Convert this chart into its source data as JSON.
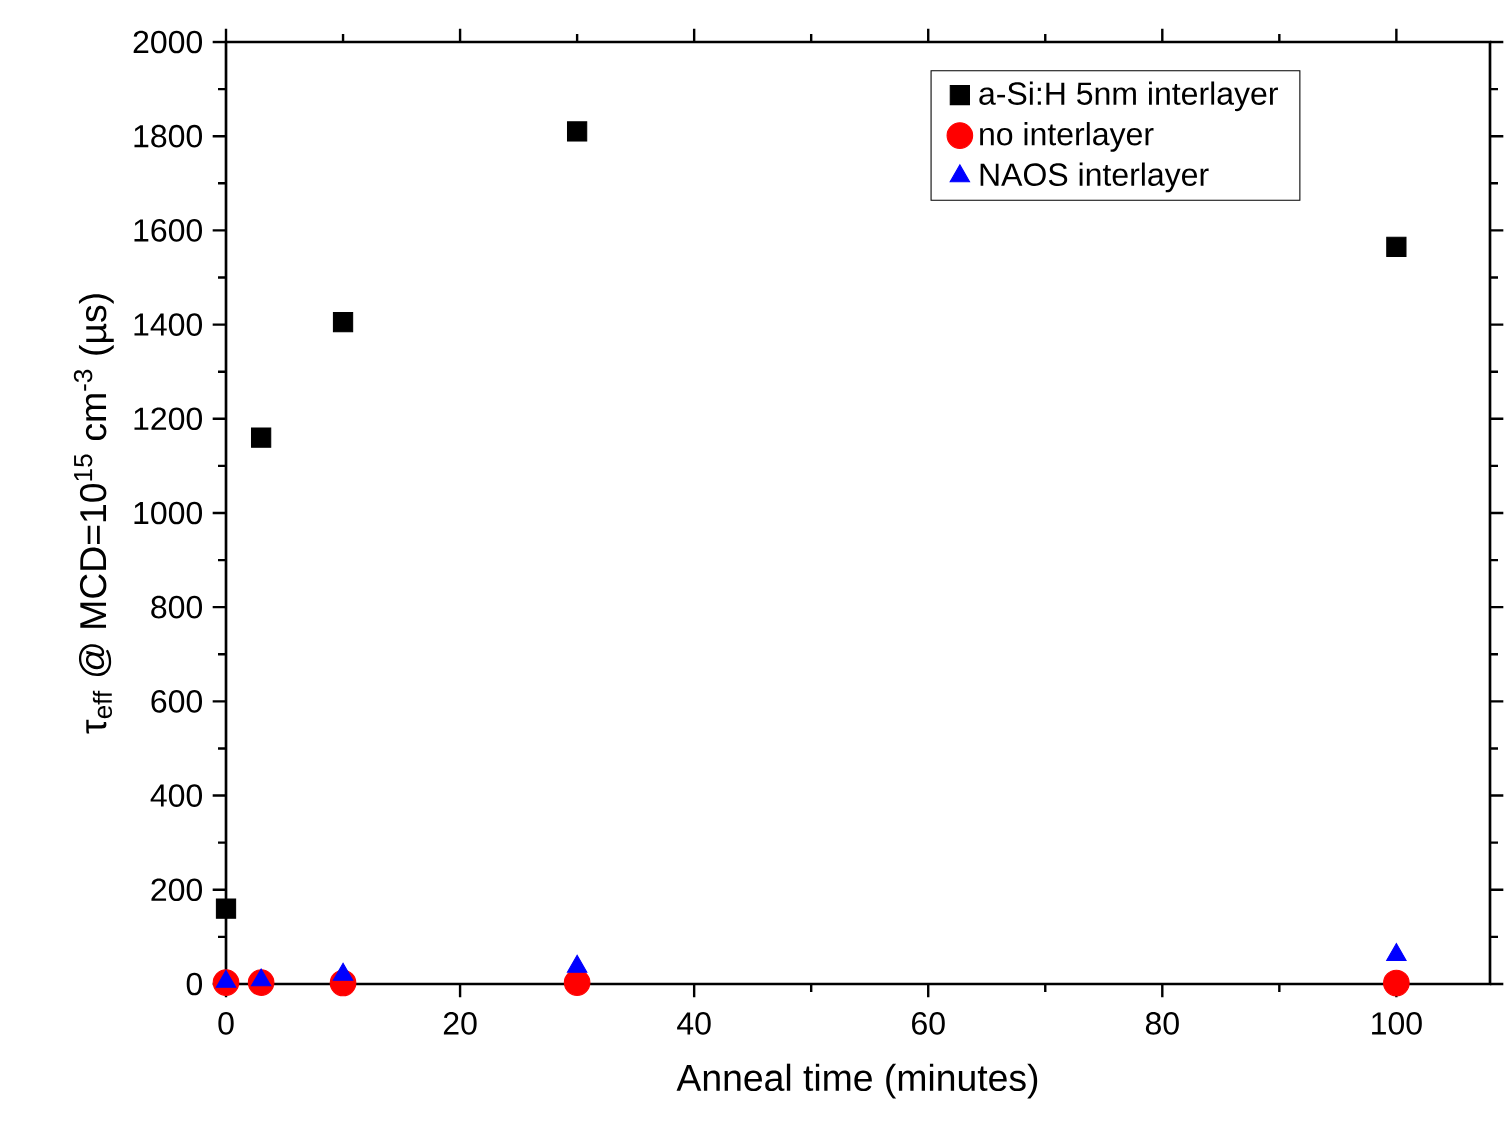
{
  "chart_data": {
    "type": "scatter",
    "xlabel": "Anneal time (minutes)",
    "ylabel": "τ$_{eff}$ @ MCD=10$^{15}$ cm$^{-3}$ (µs)",
    "x": [
      0,
      3,
      10,
      30,
      100
    ],
    "series": [
      {
        "name": "a-Si:H 5nm interlayer",
        "color": "#000000",
        "marker": "square",
        "values": [
          160,
          1160,
          1405,
          1810,
          1565
        ]
      },
      {
        "name": "no interlayer",
        "color": "#ff0000",
        "marker": "circle",
        "values": [
          3,
          3,
          2,
          3,
          2
        ]
      },
      {
        "name": "NAOS interlayer",
        "color": "#0000ff",
        "marker": "triangle",
        "values": [
          5,
          8,
          20,
          37,
          62
        ]
      }
    ],
    "xlim": [
      0,
      108
    ],
    "ylim": [
      0,
      2000
    ],
    "xticks": [
      0,
      20,
      40,
      60,
      80,
      100
    ],
    "yticks": [
      0,
      200,
      400,
      600,
      800,
      1000,
      1200,
      1400,
      1600,
      1800,
      2000
    ],
    "legend": "top right",
    "grid": false
  }
}
